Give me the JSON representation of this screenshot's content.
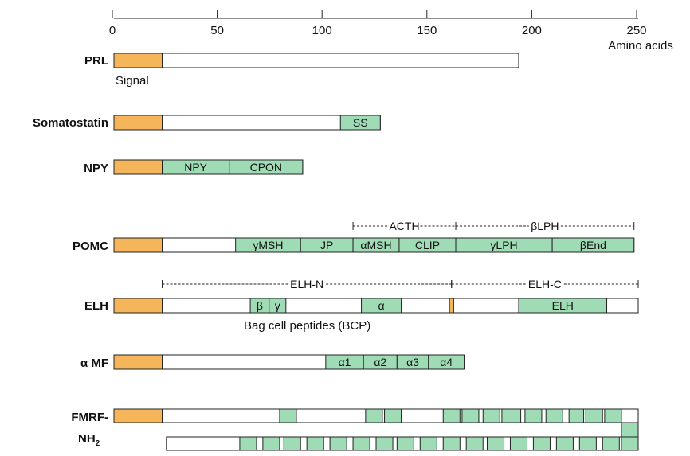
{
  "axis": {
    "ticks": [
      0,
      50,
      100,
      150,
      200,
      250
    ],
    "tick_labels": [
      "0",
      "50",
      "100",
      "150",
      "200",
      "250"
    ],
    "unit_label": "Amino acids"
  },
  "colors": {
    "signal": "#F5B55A",
    "segment": "#9FDCB6",
    "outline": "#222222",
    "text": "#111111"
  },
  "proteins": {
    "prl": {
      "name": "PRL",
      "signal_label": "Signal",
      "length": 193
    },
    "somatostatin": {
      "name": "Somatostatin",
      "length": 127,
      "segments": [
        {
          "label": "SS",
          "start": 108,
          "end": 127
        }
      ]
    },
    "npy": {
      "name": "NPY",
      "length": 90,
      "segments": [
        {
          "label": "NPY",
          "start": 23,
          "end": 55
        },
        {
          "label": "CPON",
          "start": 55,
          "end": 90
        }
      ]
    },
    "pomc": {
      "name": "POMC",
      "length": 248,
      "segments": [
        {
          "label": "γMSH",
          "start": 58,
          "end": 89
        },
        {
          "label": "JP",
          "start": 89,
          "end": 114
        },
        {
          "label": "αMSH",
          "start": 114,
          "end": 136
        },
        {
          "label": "CLIP",
          "start": 136,
          "end": 163
        },
        {
          "label": "γLPH",
          "start": 163,
          "end": 209
        },
        {
          "label": "βEnd",
          "start": 209,
          "end": 248
        }
      ],
      "brackets": [
        {
          "label": "ACTH",
          "start": 114,
          "end": 163
        },
        {
          "label": "βLPH",
          "start": 163,
          "end": 248
        }
      ]
    },
    "elh": {
      "name": "ELH",
      "length": 250,
      "segments": [
        {
          "label": "β",
          "start": 65,
          "end": 74
        },
        {
          "label": "γ",
          "start": 74,
          "end": 82
        },
        {
          "label": "α",
          "start": 118,
          "end": 137
        },
        {
          "label": "ELH",
          "start": 193,
          "end": 235
        }
      ],
      "cleavage_mark": {
        "start": 160,
        "end": 162
      },
      "brackets": [
        {
          "label": "ELH-N",
          "start": 23,
          "end": 161
        },
        {
          "label": "ELH-C",
          "start": 161,
          "end": 250
        }
      ],
      "sub_label": "Bag cell peptides (BCP)"
    },
    "amf": {
      "name": "α MF",
      "length": 167,
      "segments": [
        {
          "label": "α1",
          "start": 101,
          "end": 119
        },
        {
          "label": "α2",
          "start": 119,
          "end": 135
        },
        {
          "label": "α3",
          "start": 135,
          "end": 150
        },
        {
          "label": "α4",
          "start": 150,
          "end": 167
        }
      ]
    },
    "fmrf": {
      "name_line1": "FMRF-",
      "name_line2": "NH",
      "name_sub": "2",
      "row1": {
        "start": 0,
        "length": 250,
        "segments": [
          [
            79,
            87
          ],
          [
            120,
            128
          ],
          [
            129,
            137
          ],
          [
            157,
            165
          ],
          [
            166,
            174
          ],
          [
            176,
            184
          ],
          [
            185,
            194
          ],
          [
            196,
            204
          ],
          [
            206,
            214
          ],
          [
            217,
            224
          ],
          [
            225,
            233
          ],
          [
            234,
            242
          ]
        ]
      },
      "row2": {
        "start": 25,
        "length": 250,
        "segments": [
          [
            60,
            68
          ],
          [
            71,
            79
          ],
          [
            81,
            89
          ],
          [
            92,
            100
          ],
          [
            103,
            111
          ],
          [
            114,
            122
          ],
          [
            125,
            133
          ],
          [
            135,
            143
          ],
          [
            146,
            154
          ],
          [
            157,
            165
          ],
          [
            168,
            176
          ],
          [
            178,
            186
          ],
          [
            189,
            197
          ],
          [
            200,
            208
          ],
          [
            211,
            219
          ],
          [
            222,
            230
          ],
          [
            233,
            241
          ],
          [
            242,
            250
          ]
        ]
      },
      "end_connector": {
        "start": 242,
        "end": 250
      }
    }
  }
}
